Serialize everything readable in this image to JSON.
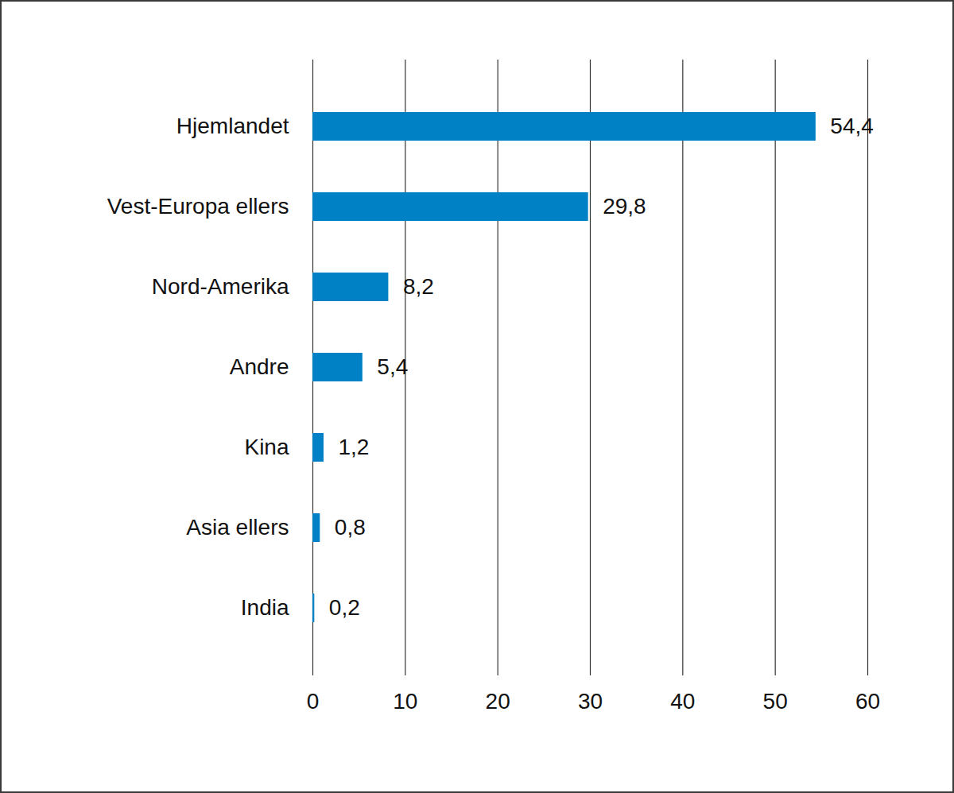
{
  "chart_data": {
    "type": "bar",
    "orientation": "horizontal",
    "categories": [
      "Hjemlandet",
      "Vest-Europa ellers",
      "Nord-Amerika",
      "Andre",
      "Kina",
      "Asia ellers",
      "India"
    ],
    "values": [
      54.4,
      29.8,
      8.2,
      5.4,
      1.2,
      0.8,
      0.2
    ],
    "value_labels": [
      "54,4",
      "29,8",
      "8,2",
      "5,4",
      "1,2",
      "0,8",
      "0,2"
    ],
    "color": "#0081c6",
    "xlim": [
      0,
      60
    ],
    "xticks": [
      0,
      10,
      20,
      30,
      40,
      50,
      60
    ],
    "grid": true,
    "data_labels": true
  }
}
